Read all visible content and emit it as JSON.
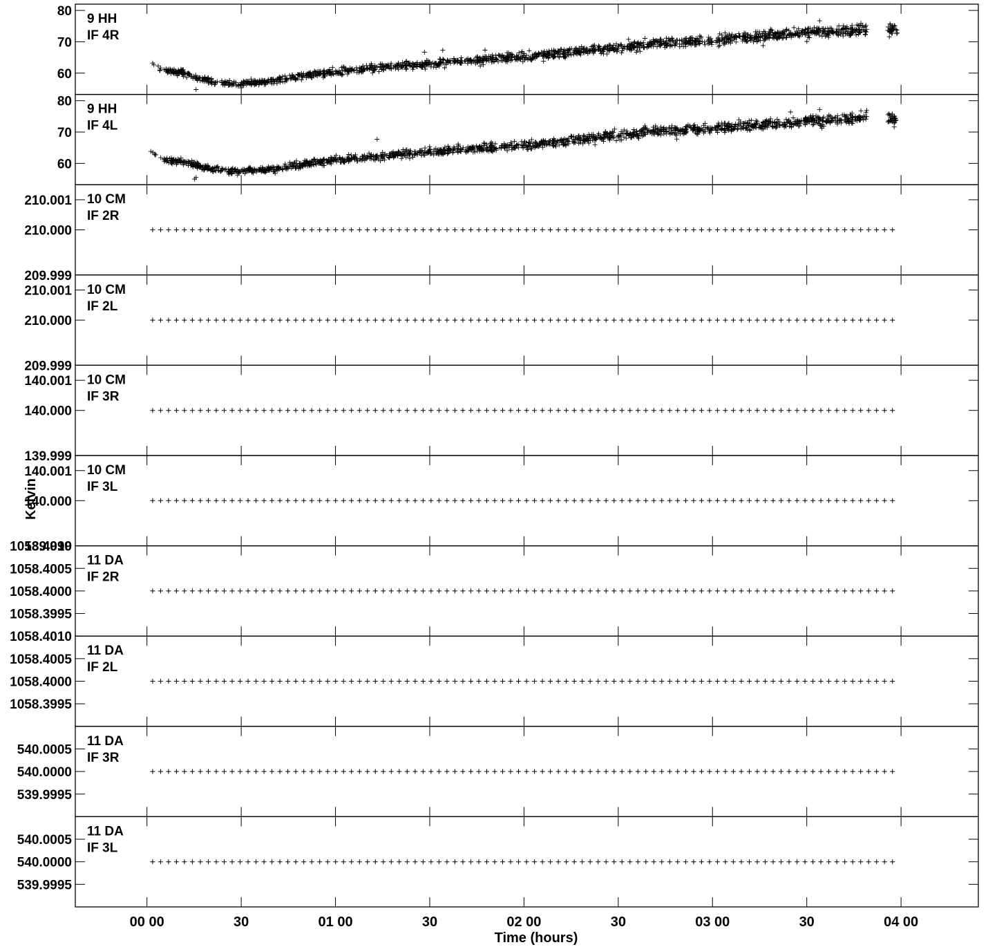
{
  "chart_data": {
    "type": "scatter",
    "xlabel": "Time (hours)",
    "ylabel": "Kelvin",
    "x_ticks": [
      {
        "h": 0.0,
        "label": "00 00"
      },
      {
        "h": 0.5,
        "label": "30"
      },
      {
        "h": 1.0,
        "label": "01 00"
      },
      {
        "h": 1.5,
        "label": "30"
      },
      {
        "h": 2.0,
        "label": "02 00"
      },
      {
        "h": 2.5,
        "label": "30"
      },
      {
        "h": 3.0,
        "label": "03 00"
      },
      {
        "h": 3.5,
        "label": "30"
      },
      {
        "h": 4.0,
        "label": "04 00"
      }
    ],
    "xlim": [
      -0.38,
      4.41
    ],
    "marker": "+",
    "panels": [
      {
        "antenna": "9 HH",
        "if": "IF 4R",
        "ylim": [
          53.2,
          82.0
        ],
        "yticks": [
          {
            "v": 60,
            "label": "60"
          },
          {
            "v": 70,
            "label": "70"
          },
          {
            "v": 80,
            "label": "80"
          }
        ],
        "trend": [
          [
            0.02,
            62.5
          ],
          [
            0.1,
            61.0
          ],
          [
            0.2,
            59.8
          ],
          [
            0.35,
            57.2
          ],
          [
            0.5,
            56.5
          ],
          [
            0.65,
            57.3
          ],
          [
            0.85,
            59.5
          ],
          [
            1.0,
            60.5
          ],
          [
            1.25,
            61.8
          ],
          [
            1.5,
            63.0
          ],
          [
            1.75,
            64.2
          ],
          [
            2.0,
            65.2
          ],
          [
            2.25,
            66.8
          ],
          [
            2.5,
            68.0
          ],
          [
            2.75,
            69.6
          ],
          [
            3.0,
            70.4
          ],
          [
            3.25,
            71.8
          ],
          [
            3.5,
            73.2
          ],
          [
            3.75,
            73.6
          ],
          [
            3.9,
            74.3
          ],
          [
            3.97,
            73.2
          ]
        ]
      },
      {
        "antenna": "9 HH",
        "if": "IF 4L",
        "ylim": [
          53.2,
          82.0
        ],
        "yticks": [
          {
            "v": 60,
            "label": "60"
          },
          {
            "v": 70,
            "label": "70"
          },
          {
            "v": 80,
            "label": "80"
          }
        ],
        "trend": [
          [
            0.02,
            63.5
          ],
          [
            0.1,
            61.0
          ],
          [
            0.2,
            60.5
          ],
          [
            0.35,
            58.0
          ],
          [
            0.5,
            57.5
          ],
          [
            0.65,
            58.0
          ],
          [
            0.85,
            60.0
          ],
          [
            1.0,
            61.0
          ],
          [
            1.25,
            62.4
          ],
          [
            1.5,
            63.8
          ],
          [
            1.75,
            64.8
          ],
          [
            2.0,
            65.6
          ],
          [
            2.25,
            67.4
          ],
          [
            2.5,
            69.0
          ],
          [
            2.75,
            70.4
          ],
          [
            3.0,
            71.2
          ],
          [
            3.25,
            72.0
          ],
          [
            3.5,
            73.6
          ],
          [
            3.75,
            74.4
          ],
          [
            3.9,
            75.6
          ],
          [
            3.97,
            73.8
          ]
        ]
      },
      {
        "antenna": "10 CM",
        "if": "IF 2R",
        "ylim": [
          209.9985,
          210.0015
        ],
        "yticks": [
          {
            "v": 210.0,
            "label": "210.000"
          },
          {
            "v": 210.001,
            "label": "210.001"
          }
        ],
        "bottom_label": "209.999",
        "constant": 210.0
      },
      {
        "antenna": "10 CM",
        "if": "IF 2L",
        "ylim": [
          209.9985,
          210.0015
        ],
        "yticks": [
          {
            "v": 210.0,
            "label": "210.000"
          },
          {
            "v": 210.001,
            "label": "210.001"
          }
        ],
        "bottom_label": "209.999",
        "constant": 210.0
      },
      {
        "antenna": "10 CM",
        "if": "IF 3R",
        "ylim": [
          139.9985,
          140.0015
        ],
        "yticks": [
          {
            "v": 140.0,
            "label": "140.000"
          },
          {
            "v": 140.001,
            "label": "140.001"
          }
        ],
        "bottom_label": "139.999",
        "constant": 140.0
      },
      {
        "antenna": "10 CM",
        "if": "IF 3L",
        "ylim": [
          139.9985,
          140.0015
        ],
        "yticks": [
          {
            "v": 140.0,
            "label": "140.000"
          },
          {
            "v": 140.001,
            "label": "140.001"
          }
        ],
        "bottom_label": "139.999",
        "constant": 140.0
      },
      {
        "antenna": "11 DA",
        "if": "IF 2R",
        "ylim": [
          1058.399,
          1058.401
        ],
        "yticks": [
          {
            "v": 1058.3995,
            "label": "1058.3995"
          },
          {
            "v": 1058.4,
            "label": "1058.4000"
          },
          {
            "v": 1058.4005,
            "label": "1058.4005"
          },
          {
            "v": 1058.401,
            "label": "1058.4010"
          }
        ],
        "constant": 1058.4
      },
      {
        "antenna": "11 DA",
        "if": "IF 2L",
        "ylim": [
          1058.399,
          1058.401
        ],
        "yticks": [
          {
            "v": 1058.3995,
            "label": "1058.3995"
          },
          {
            "v": 1058.4,
            "label": "1058.4000"
          },
          {
            "v": 1058.4005,
            "label": "1058.4005"
          },
          {
            "v": 1058.401,
            "label": "1058.4010"
          }
        ],
        "constant": 1058.4
      },
      {
        "antenna": "11 DA",
        "if": "IF 3R",
        "ylim": [
          539.999,
          540.001
        ],
        "yticks": [
          {
            "v": 539.9995,
            "label": "539.9995"
          },
          {
            "v": 540.0,
            "label": "540.0000"
          },
          {
            "v": 540.0005,
            "label": "540.0005"
          }
        ],
        "constant": 540.0
      },
      {
        "antenna": "11 DA",
        "if": "IF 3L",
        "ylim": [
          539.999,
          540.001
        ],
        "yticks": [
          {
            "v": 539.9995,
            "label": "539.9995"
          },
          {
            "v": 540.0,
            "label": "540.0000"
          },
          {
            "v": 540.0005,
            "label": "540.0005"
          }
        ],
        "constant": 540.0
      }
    ]
  }
}
